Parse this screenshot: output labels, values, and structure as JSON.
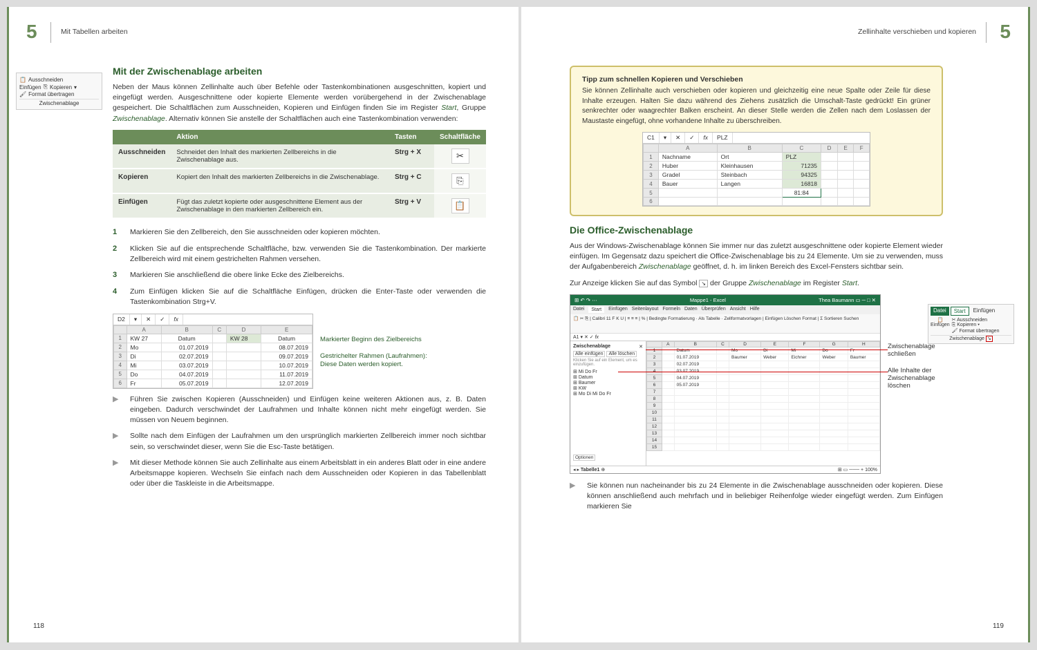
{
  "leftPage": {
    "chapterNum": "5",
    "headerTitle": "Mit Tabellen arbeiten",
    "pageNum": "118",
    "h2": "Mit der Zwischenablage arbeiten",
    "intro": "Neben der Maus können Zellinhalte auch über Befehle oder Tastenkombinationen ausgeschnitten, kopiert und eingefügt werden. Ausgeschnittene oder kopierte Elemente werden vorübergehend in der Zwischenablage gespeichert. Die Schaltflächen zum Ausschneiden, Kopieren und Einfügen finden Sie im Register ",
    "introItal1": "Start",
    "introMid": ", Gruppe ",
    "introItal2": "Zwischenablage",
    "introEnd": ". Alternativ können Sie anstelle der Schaltflächen auch eine Tastenkombination verwenden:",
    "table": {
      "headers": [
        "",
        "Aktion",
        "Tasten",
        "Schaltfläche"
      ],
      "rows": [
        {
          "cmd": "Ausschneiden",
          "action": "Schneidet den Inhalt des markierten Zellbereichs in die Zwischenablage aus.",
          "key": "Strg + X",
          "icon": "✂"
        },
        {
          "cmd": "Kopieren",
          "action": "Kopiert den Inhalt des markierten Zellbereichs in die Zwischenablage.",
          "key": "Strg + C",
          "icon": "⎘"
        },
        {
          "cmd": "Einfügen",
          "action": "Fügt das zuletzt kopierte oder ausgeschnittene Element aus der Zwischenablage in den markierten Zellbereich ein.",
          "key": "Strg + V",
          "icon": "📋"
        }
      ]
    },
    "steps": [
      "Markieren Sie den Zellbereich, den Sie ausschneiden oder kopieren möchten.",
      "Klicken Sie auf die entsprechende Schaltfläche, bzw. verwenden Sie die Tastenkombination. Der markierte Zellbereich wird mit einem gestrichelten Rahmen versehen.",
      "Markieren Sie anschließend die obere linke Ecke des Zielbereichs.",
      "Zum Einfügen klicken Sie auf die Schaltfläche Einfügen, drücken die Enter-Taste oder verwenden die Tastenkombination Strg+V."
    ],
    "excel1": {
      "cellRef": "D2",
      "cols": [
        "",
        "A",
        "B",
        "C",
        "D",
        "E"
      ],
      "rows": [
        [
          "1",
          "KW 27",
          "Datum",
          "",
          "KW 28",
          "Datum"
        ],
        [
          "2",
          "Mo",
          "01.07.2019",
          "",
          "",
          "08.07.2019"
        ],
        [
          "3",
          "Di",
          "02.07.2019",
          "",
          "",
          "09.07.2019"
        ],
        [
          "4",
          "Mi",
          "03.07.2019",
          "",
          "",
          "10.07.2019"
        ],
        [
          "5",
          "Do",
          "04.07.2019",
          "",
          "",
          "11.07.2019"
        ],
        [
          "6",
          "Fr",
          "05.07.2019",
          "",
          "",
          "12.07.2019"
        ]
      ],
      "callout1": "Markierter Beginn des Zielbereichs",
      "callout2a": "Gestrichelter Rahmen (Laufrahmen):",
      "callout2b": "Diese Daten werden kopiert."
    },
    "bullets": [
      "Führen Sie zwischen Kopieren (Ausschneiden) und Einfügen keine weiteren Aktionen aus, z. B. Daten eingeben. Dadurch verschwindet der Laufrahmen und Inhalte können nicht mehr eingefügt werden. Sie müssen von Neuem beginnen.",
      "Sollte nach dem Einfügen der Laufrahmen um den ursprünglich markierten Zellbereich immer noch sichtbar sein, so verschwindet dieser, wenn Sie die Esc-Taste betätigen.",
      "Mit dieser Methode können Sie auch Zellinhalte aus einem Arbeitsblatt in ein anderes Blatt oder in eine andere Arbeitsmappe kopieren. Wechseln Sie einfach nach dem Ausschneiden oder Kopieren in das Tabellenblatt oder über die Taskleiste in die Arbeitsmappe."
    ],
    "ribbon": {
      "einfuegen": "Einfügen",
      "ausschneiden": "Ausschneiden",
      "kopieren": "Kopieren",
      "format": "Format übertragen",
      "group": "Zwischenablage"
    }
  },
  "rightPage": {
    "chapterNum": "5",
    "headerTitle": "Zellinhalte verschieben und kopieren",
    "pageNum": "119",
    "tip": {
      "title": "Tipp zum schnellen Kopieren und Verschieben",
      "body": "Sie können Zellinhalte auch verschieben oder kopieren und gleichzeitig eine neue Spalte oder Zeile für diese Inhalte erzeugen. Halten Sie dazu während des Ziehens zusätzlich die Umschalt-Taste gedrückt! Ein grüner senkrechter oder waagrechter Balken erscheint. An dieser Stelle werden die Zellen nach dem Loslassen der Maustaste eingefügt, ohne vorhandene Inhalte zu überschreiben."
    },
    "tipExcel": {
      "cellRef": "C1",
      "fxVal": "PLZ",
      "cols": [
        "",
        "A",
        "B",
        "C",
        "D",
        "E",
        "F"
      ],
      "rows": [
        [
          "1",
          "Nachname",
          "Ort",
          "PLZ",
          "",
          "",
          ""
        ],
        [
          "2",
          "Huber",
          "Kleinhausen",
          "71235",
          "",
          "",
          ""
        ],
        [
          "3",
          "Gradel",
          "Steinbach",
          "94325",
          "",
          "",
          ""
        ],
        [
          "4",
          "Bauer",
          "Langen",
          "16818",
          "",
          "",
          ""
        ],
        [
          "5",
          "",
          "",
          "81:84",
          "",
          "",
          ""
        ],
        [
          "6",
          "",
          "",
          "",
          "",
          "",
          ""
        ]
      ]
    },
    "h2": "Die Office-Zwischenablage",
    "p1a": "Aus der Windows-Zwischenablage können Sie immer nur das zuletzt ausgeschnittene oder kopierte Element wieder einfügen. Im Gegensatz dazu speichert die Office-Zwischenablage bis zu 24 Elemente. Um sie zu verwenden, muss der Aufgabenbereich ",
    "p1Ital": "Zwischenablage",
    "p1b": " geöffnet, d. h. im linken Bereich des Excel-Fensters sichtbar sein.",
    "p2a": "Zur Anzeige klicken Sie auf das Symbol ",
    "p2b": " der Gruppe ",
    "p2Ital1": "Zwischenablage",
    "p2c": " im Register ",
    "p2Ital2": "Start",
    "p2d": ".",
    "bigExcel": {
      "title": "Mappe1 - Excel",
      "user": "Thea Baumann",
      "tabs": [
        "Datei",
        "Start",
        "Einfügen",
        "Seitenlayout",
        "Formeln",
        "Daten",
        "Überprüfen",
        "Ansicht",
        "Hilfe"
      ],
      "clipTitle": "Zwischenablage",
      "clipBtns": [
        "Alle einfügen",
        "Alle löschen"
      ],
      "clipNote": "Klicken Sie auf ein Element, um es einzufügen.",
      "clipItems": [
        "Mi Do Fr",
        "Datum",
        "Baumer",
        "KW",
        "Mo Di Mi Do Fr"
      ],
      "gridCols": [
        "",
        "A",
        "B",
        "C",
        "D",
        "E",
        "F",
        "G",
        "H"
      ],
      "gridRows": [
        [
          "1",
          "",
          "Datum",
          "",
          "Mo",
          "Di",
          "Mi",
          "Do",
          "Fr"
        ],
        [
          "2",
          "",
          "01.07.2019",
          "",
          "Baumer",
          "Weber",
          "Eichner",
          "Weber",
          "Baumer"
        ],
        [
          "3",
          "",
          "02.07.2019",
          "",
          "",
          "",
          "",
          "",
          ""
        ],
        [
          "4",
          "",
          "03.07.2019",
          "",
          "",
          "",
          "",
          "",
          ""
        ],
        [
          "5",
          "",
          "04.07.2019",
          "",
          "",
          "",
          "",
          "",
          ""
        ],
        [
          "6",
          "",
          "05.07.2019",
          "",
          "",
          "",
          "",
          "",
          ""
        ],
        [
          "7",
          "",
          "",
          "",
          "",
          "",
          "",
          "",
          ""
        ],
        [
          "8",
          "",
          "",
          "",
          "",
          "",
          "",
          "",
          ""
        ],
        [
          "9",
          "",
          "",
          "",
          "",
          "",
          "",
          "",
          ""
        ],
        [
          "10",
          "",
          "",
          "",
          "",
          "",
          "",
          "",
          ""
        ],
        [
          "11",
          "",
          "",
          "",
          "",
          "",
          "",
          "",
          ""
        ],
        [
          "12",
          "",
          "",
          "",
          "",
          "",
          "",
          "",
          ""
        ],
        [
          "13",
          "",
          "",
          "",
          "",
          "",
          "",
          "",
          ""
        ],
        [
          "14",
          "",
          "",
          "",
          "",
          "",
          "",
          "",
          ""
        ],
        [
          "15",
          "",
          "",
          "",
          "",
          "",
          "",
          "",
          ""
        ]
      ],
      "sheetTab": "Tabelle1",
      "optionen": "Optionen"
    },
    "annot1": "Zwischenablage schließen",
    "annot2": "Alle Inhalte der Zwischenablage löschen",
    "bullet1": "Sie können nun nacheinander bis zu 24 Elemente in die Zwischenablage ausschneiden oder kopieren. Diese können anschließend auch mehrfach und in beliebiger Reihenfolge wieder eingefügt werden. Zum Einfügen markieren Sie",
    "sideRibbon": {
      "datei": "Datei",
      "start": "Start",
      "einfuegen": "Einfügen",
      "einfuegenBtn": "Einfügen",
      "ausschneiden": "Ausschneiden",
      "kopieren": "Kopieren",
      "format": "Format übertragen",
      "group": "Zwischenablage"
    }
  }
}
